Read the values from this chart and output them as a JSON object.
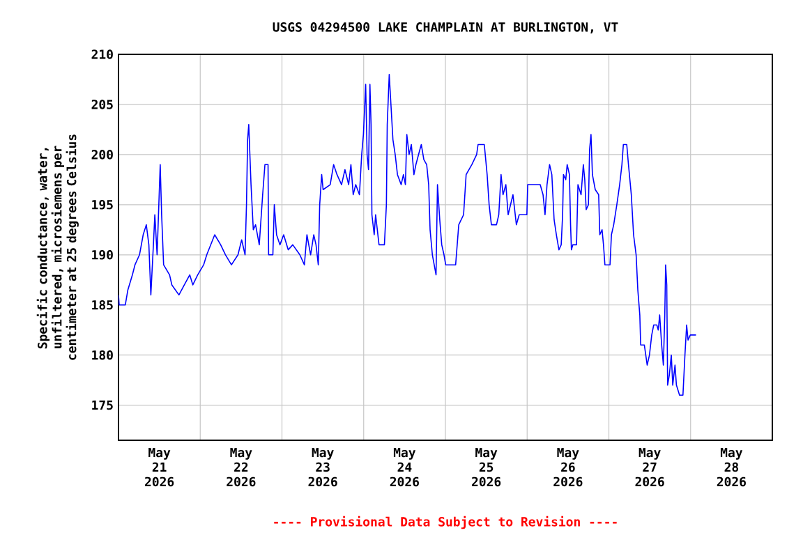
{
  "chart_data": {
    "type": "line",
    "title": "USGS 04294500 LAKE CHAMPLAIN AT BURLINGTON, VT",
    "ylabel": "Specific conductance, water, unfiltered, microsiemens per centimeter at 25 degrees Celsius",
    "annotations": [
      "---- Provisional Data Subject to Revision ----"
    ],
    "xlim": [
      "2026-05-21T00:00",
      "2026-05-29T00:00"
    ],
    "xticks": [
      {
        "value": "2026-05-21T12:00",
        "label": "May 21 2026"
      },
      {
        "value": "2026-05-22T00:00",
        "label": null
      },
      {
        "value": "2026-05-22T12:00",
        "label": "May 22 2026"
      },
      {
        "value": "2026-05-23T00:00",
        "label": null
      },
      {
        "value": "2026-05-23T12:00",
        "label": "May 23 2026"
      },
      {
        "value": "2026-05-24T00:00",
        "label": null
      },
      {
        "value": "2026-05-24T12:00",
        "label": "May 24 2026"
      },
      {
        "value": "2026-05-25T00:00",
        "label": null
      },
      {
        "value": "2026-05-25T12:00",
        "label": "May 25 2026"
      },
      {
        "value": "2026-05-26T00:00",
        "label": null
      },
      {
        "value": "2026-05-26T12:00",
        "label": "May 26 2026"
      },
      {
        "value": "2026-05-27T00:00",
        "label": null
      },
      {
        "value": "2026-05-27T12:00",
        "label": "May 27 2026"
      },
      {
        "value": "2026-05-28T00:00",
        "label": null
      },
      {
        "value": "2026-05-28T12:00",
        "label": "May 28 2026"
      }
    ],
    "ylim": [
      171.5,
      210
    ],
    "yticks": [
      175,
      180,
      185,
      190,
      195,
      200,
      205,
      210
    ],
    "grid": true,
    "marker": "none",
    "line_style": "solid",
    "series": [
      {
        "color": "#0000ff",
        "x": [
          "2026-05-21T00:00",
          "2026-05-21T00:12",
          "2026-05-21T02:00",
          "2026-05-21T02:45",
          "2026-05-21T04:05",
          "2026-05-21T04:50",
          "2026-05-21T06:10",
          "2026-05-21T07:15",
          "2026-05-21T08:10",
          "2026-05-21T08:55",
          "2026-05-21T09:30",
          "2026-05-21T10:15",
          "2026-05-21T10:40",
          "2026-05-21T11:20",
          "2026-05-21T12:15",
          "2026-05-21T12:40",
          "2026-05-21T13:15",
          "2026-05-21T15:00",
          "2026-05-21T15:40",
          "2026-05-21T17:45",
          "2026-05-21T19:20",
          "2026-05-21T20:55",
          "2026-05-21T21:50",
          "2026-05-21T23:15",
          "2026-05-22T01:00",
          "2026-05-22T01:55",
          "2026-05-22T04:15",
          "2026-05-22T06:00",
          "2026-05-22T07:25",
          "2026-05-22T09:10",
          "2026-05-22T11:05",
          "2026-05-22T12:10",
          "2026-05-22T13:10",
          "2026-05-22T13:35",
          "2026-05-22T13:55",
          "2026-05-22T14:15",
          "2026-05-22T14:55",
          "2026-05-22T15:35",
          "2026-05-22T16:15",
          "2026-05-22T17:20",
          "2026-05-22T18:20",
          "2026-05-22T19:00",
          "2026-05-22T19:55",
          "2026-05-22T20:05",
          "2026-05-22T21:20",
          "2026-05-22T21:45",
          "2026-05-22T22:25",
          "2026-05-22T23:25",
          "2026-05-23T00:30",
          "2026-05-23T01:50",
          "2026-05-23T03:10",
          "2026-05-23T05:15",
          "2026-05-23T06:35",
          "2026-05-23T07:20",
          "2026-05-23T08:25",
          "2026-05-23T09:20",
          "2026-05-23T10:00",
          "2026-05-23T10:40",
          "2026-05-23T11:05",
          "2026-05-23T11:40",
          "2026-05-23T12:05",
          "2026-05-23T14:10",
          "2026-05-23T15:10",
          "2026-05-23T16:10",
          "2026-05-23T17:30",
          "2026-05-23T18:30",
          "2026-05-23T19:35",
          "2026-05-23T20:15",
          "2026-05-23T20:55",
          "2026-05-23T21:40",
          "2026-05-23T22:45",
          "2026-05-23T23:25",
          "2026-05-23T23:55",
          "2026-05-24T00:35",
          "2026-05-24T01:00",
          "2026-05-24T01:25",
          "2026-05-24T01:50",
          "2026-05-24T02:10",
          "2026-05-24T02:25",
          "2026-05-24T03:05",
          "2026-05-24T03:30",
          "2026-05-24T04:30",
          "2026-05-24T06:05",
          "2026-05-24T06:40",
          "2026-05-24T06:55",
          "2026-05-24T07:30",
          "2026-05-24T07:50",
          "2026-05-24T08:35",
          "2026-05-24T09:15",
          "2026-05-24T09:55",
          "2026-05-24T11:00",
          "2026-05-24T11:40",
          "2026-05-24T12:15",
          "2026-05-24T12:40",
          "2026-05-24T13:20",
          "2026-05-24T14:00",
          "2026-05-24T14:45",
          "2026-05-24T15:20",
          "2026-05-24T16:30",
          "2026-05-24T16:55",
          "2026-05-24T17:40",
          "2026-05-24T18:30",
          "2026-05-24T19:05",
          "2026-05-24T19:30",
          "2026-05-24T20:10",
          "2026-05-24T21:15",
          "2026-05-24T21:40",
          "2026-05-24T22:20",
          "2026-05-24T22:55",
          "2026-05-24T23:35",
          "2026-05-25T00:05",
          "2026-05-25T03:00",
          "2026-05-25T03:55",
          "2026-05-25T05:20",
          "2026-05-25T06:05",
          "2026-05-25T07:45",
          "2026-05-25T09:10",
          "2026-05-25T09:35",
          "2026-05-25T11:25",
          "2026-05-25T12:15",
          "2026-05-25T12:50",
          "2026-05-25T13:30",
          "2026-05-25T15:00",
          "2026-05-25T15:40",
          "2026-05-25T16:20",
          "2026-05-25T16:55",
          "2026-05-25T17:45",
          "2026-05-25T18:25",
          "2026-05-25T19:50",
          "2026-05-25T20:50",
          "2026-05-25T21:40",
          "2026-05-25T23:55",
          "2026-05-26T00:10",
          "2026-05-26T03:50",
          "2026-05-26T04:40",
          "2026-05-26T05:15",
          "2026-05-26T05:50",
          "2026-05-26T06:35",
          "2026-05-26T07:15",
          "2026-05-26T07:55",
          "2026-05-26T08:35",
          "2026-05-26T09:20",
          "2026-05-26T10:00",
          "2026-05-26T10:25",
          "2026-05-26T10:40",
          "2026-05-26T11:20",
          "2026-05-26T11:45",
          "2026-05-26T12:25",
          "2026-05-26T12:45",
          "2026-05-26T13:00",
          "2026-05-26T13:25",
          "2026-05-26T14:30",
          "2026-05-26T14:55",
          "2026-05-26T15:50",
          "2026-05-26T16:30",
          "2026-05-26T16:55",
          "2026-05-26T17:20",
          "2026-05-26T18:00",
          "2026-05-26T18:20",
          "2026-05-26T18:45",
          "2026-05-26T19:10",
          "2026-05-26T20:00",
          "2026-05-26T21:00",
          "2026-05-26T21:20",
          "2026-05-26T22:00",
          "2026-05-26T22:25",
          "2026-05-26T22:50",
          "2026-05-27T00:20",
          "2026-05-27T00:45",
          "2026-05-27T01:25",
          "2026-05-27T02:20",
          "2026-05-27T03:10",
          "2026-05-27T03:50",
          "2026-05-27T04:15",
          "2026-05-27T05:15",
          "2026-05-27T05:45",
          "2026-05-27T06:35",
          "2026-05-27T07:15",
          "2026-05-27T08:00",
          "2026-05-27T08:30",
          "2026-05-27T09:05",
          "2026-05-27T09:20",
          "2026-05-27T10:25",
          "2026-05-27T11:15",
          "2026-05-27T11:55",
          "2026-05-27T12:35",
          "2026-05-27T13:10",
          "2026-05-27T14:05",
          "2026-05-27T14:30",
          "2026-05-27T14:55",
          "2026-05-27T15:30",
          "2026-05-27T16:00",
          "2026-05-27T16:25",
          "2026-05-27T16:40",
          "2026-05-27T17:00",
          "2026-05-27T17:15",
          "2026-05-27T17:45",
          "2026-05-27T18:20",
          "2026-05-27T18:45",
          "2026-05-27T19:25",
          "2026-05-27T19:50",
          "2026-05-27T20:45",
          "2026-05-27T21:45",
          "2026-05-27T22:20",
          "2026-05-27T22:50",
          "2026-05-27T23:15",
          "2026-05-27T23:55",
          "2026-05-28T01:35"
        ],
        "values": [
          186,
          185,
          185,
          186.5,
          188,
          189,
          190,
          192,
          193,
          191,
          186,
          191,
          194,
          190,
          199,
          194,
          189,
          188,
          187,
          186,
          187,
          188,
          187,
          188,
          189,
          190,
          192,
          191,
          190,
          189,
          190,
          191.5,
          190,
          195,
          201.5,
          203,
          197,
          192.5,
          193,
          191,
          196,
          199,
          199,
          190,
          190,
          195,
          192,
          191,
          192,
          190.5,
          191,
          190,
          189,
          192,
          190,
          192,
          191,
          189,
          195,
          198,
          196.5,
          197,
          199,
          198,
          197,
          198.5,
          197,
          199,
          196,
          197,
          196,
          200,
          202,
          207,
          200,
          198.5,
          207,
          203,
          194,
          192,
          194,
          191,
          191,
          195,
          203,
          208,
          206,
          201.5,
          200,
          198,
          197,
          198,
          197,
          202,
          200,
          201,
          198,
          199,
          200.5,
          201,
          199.5,
          199,
          197,
          192.5,
          190,
          188,
          197,
          193.5,
          191,
          190,
          189,
          189,
          193,
          194,
          198,
          199,
          200,
          201,
          201,
          198,
          195,
          193,
          193,
          194,
          198,
          196,
          197,
          194,
          196,
          193,
          194,
          194,
          197,
          197,
          196,
          194,
          197,
          199,
          198,
          193.5,
          192,
          190.5,
          191,
          194,
          198,
          197.5,
          199,
          198,
          193,
          190.5,
          191,
          191,
          197,
          196,
          199,
          197.5,
          194.5,
          195,
          200.5,
          202,
          198,
          196.5,
          196,
          192,
          192.5,
          191,
          189,
          189,
          192,
          193,
          195,
          197,
          199,
          201,
          201,
          199,
          196,
          192,
          190,
          186.5,
          184,
          181,
          181,
          179,
          180,
          182,
          183,
          183,
          182.5,
          184,
          181,
          179,
          184,
          189,
          187,
          177,
          178,
          180,
          177,
          179,
          177,
          176,
          176,
          180,
          183,
          181.5,
          182,
          182
        ]
      }
    ]
  }
}
